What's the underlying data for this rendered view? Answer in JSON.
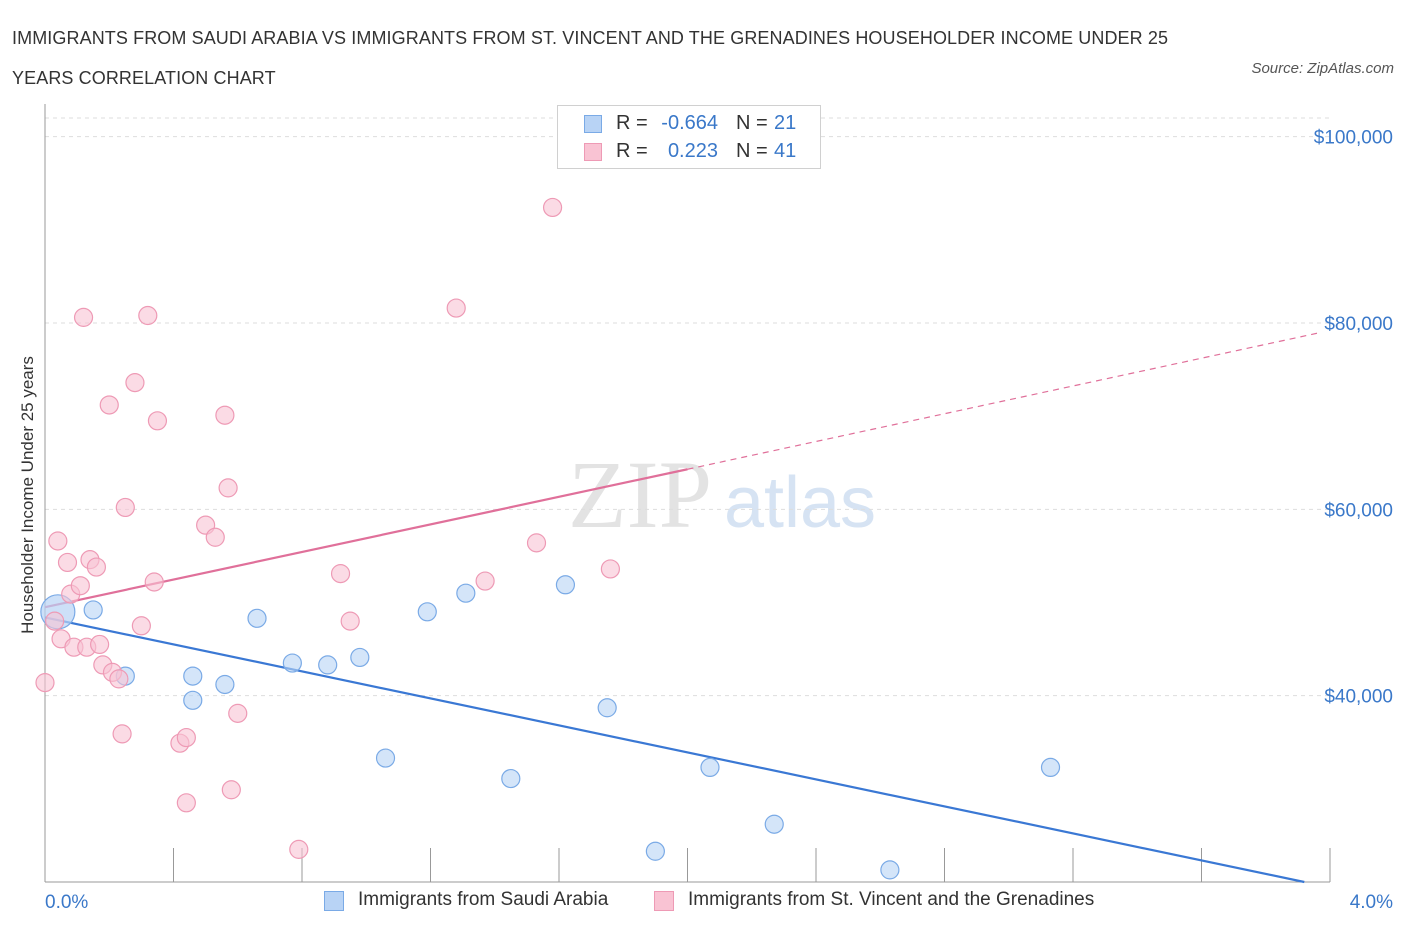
{
  "title": "IMMIGRANTS FROM SAUDI ARABIA VS IMMIGRANTS FROM ST. VINCENT AND THE GRENADINES HOUSEHOLDER INCOME UNDER 25 YEARS CORRELATION CHART",
  "source": "Source: ZipAtlas.com",
  "watermark": {
    "zip": "ZIP",
    "atlas": "atlas"
  },
  "colors": {
    "blue": "#3a78d4",
    "blue_fill": "#b8d3f5",
    "blue_stroke": "#7aaae6",
    "pink": "#e0709a",
    "pink_fill": "#f9c3d3",
    "pink_stroke": "#ee9ab5",
    "axis_label": "#3a78c9",
    "grid": "#dddddd"
  },
  "legend_top": [
    {
      "r_label": "R =",
      "r_value": "-0.664",
      "n_label": "N =",
      "n_value": "21"
    },
    {
      "r_label": "R =",
      "r_value": "0.223",
      "n_label": "N =",
      "n_value": "41"
    }
  ],
  "chart_data": {
    "type": "scatter",
    "title": "IMMIGRANTS FROM SAUDI ARABIA VS IMMIGRANTS FROM ST. VINCENT AND THE GRENADINES HOUSEHOLDER INCOME UNDER 25 YEARS CORRELATION CHART",
    "xlabel": "",
    "ylabel": "Householder Income Under 25 years",
    "xlim": [
      0,
      4
    ],
    "ylim": [
      20000,
      102000
    ],
    "x_tick_labels": [
      "0.0%",
      "4.0%"
    ],
    "y_ticks": [
      40000,
      60000,
      80000,
      100000
    ],
    "y_tick_labels": [
      "$40,000",
      "$60,000",
      "$80,000",
      "$100,000"
    ],
    "grid": true,
    "legend_position": "bottom",
    "series": [
      {
        "name": "Immigrants from Saudi Arabia",
        "color": "blue",
        "trend": {
          "x": [
            0.0,
            3.92
          ],
          "y": [
            48400,
            20000
          ],
          "dashed_to": null
        },
        "points": [
          {
            "x": 0.04,
            "y": 49000,
            "big": true
          },
          {
            "x": 0.15,
            "y": 49200
          },
          {
            "x": 0.25,
            "y": 42100
          },
          {
            "x": 0.46,
            "y": 42100
          },
          {
            "x": 0.46,
            "y": 39500
          },
          {
            "x": 0.56,
            "y": 41200
          },
          {
            "x": 0.66,
            "y": 48300
          },
          {
            "x": 0.77,
            "y": 43500
          },
          {
            "x": 0.88,
            "y": 43300
          },
          {
            "x": 0.98,
            "y": 44100
          },
          {
            "x": 1.06,
            "y": 33300
          },
          {
            "x": 1.19,
            "y": 49000
          },
          {
            "x": 1.31,
            "y": 51000
          },
          {
            "x": 1.45,
            "y": 31100
          },
          {
            "x": 1.62,
            "y": 51900
          },
          {
            "x": 1.75,
            "y": 38700
          },
          {
            "x": 1.9,
            "y": 23300
          },
          {
            "x": 2.07,
            "y": 32300
          },
          {
            "x": 2.27,
            "y": 26200
          },
          {
            "x": 2.63,
            "y": 21300
          },
          {
            "x": 3.13,
            "y": 32300
          }
        ]
      },
      {
        "name": "Immigrants from St. Vincent and the Grenadines",
        "color": "pink",
        "trend": {
          "x": [
            0.0,
            2.0
          ],
          "y": [
            49500,
            64300
          ],
          "dashed_to": {
            "x": 3.96,
            "y": 78900
          }
        },
        "points": [
          {
            "x": 0.0,
            "y": 41400
          },
          {
            "x": 0.03,
            "y": 48000
          },
          {
            "x": 0.04,
            "y": 56600
          },
          {
            "x": 0.05,
            "y": 46100
          },
          {
            "x": 0.07,
            "y": 54300
          },
          {
            "x": 0.08,
            "y": 50900
          },
          {
            "x": 0.09,
            "y": 45200
          },
          {
            "x": 0.11,
            "y": 51800
          },
          {
            "x": 0.12,
            "y": 80600
          },
          {
            "x": 0.13,
            "y": 45200
          },
          {
            "x": 0.14,
            "y": 54600
          },
          {
            "x": 0.16,
            "y": 53800
          },
          {
            "x": 0.17,
            "y": 45500
          },
          {
            "x": 0.18,
            "y": 43300
          },
          {
            "x": 0.2,
            "y": 71200
          },
          {
            "x": 0.21,
            "y": 42500
          },
          {
            "x": 0.23,
            "y": 41800
          },
          {
            "x": 0.24,
            "y": 35900
          },
          {
            "x": 0.25,
            "y": 60200
          },
          {
            "x": 0.28,
            "y": 73600
          },
          {
            "x": 0.3,
            "y": 47500
          },
          {
            "x": 0.32,
            "y": 80800
          },
          {
            "x": 0.34,
            "y": 52200
          },
          {
            "x": 0.35,
            "y": 69500
          },
          {
            "x": 0.42,
            "y": 34900
          },
          {
            "x": 0.44,
            "y": 28500
          },
          {
            "x": 0.44,
            "y": 35500
          },
          {
            "x": 0.5,
            "y": 58300
          },
          {
            "x": 0.53,
            "y": 57000
          },
          {
            "x": 0.56,
            "y": 70100
          },
          {
            "x": 0.57,
            "y": 62300
          },
          {
            "x": 0.58,
            "y": 29900
          },
          {
            "x": 0.6,
            "y": 38100
          },
          {
            "x": 0.79,
            "y": 23500
          },
          {
            "x": 0.92,
            "y": 53100
          },
          {
            "x": 0.95,
            "y": 48000
          },
          {
            "x": 1.28,
            "y": 81600
          },
          {
            "x": 1.37,
            "y": 52300
          },
          {
            "x": 1.53,
            "y": 56400
          },
          {
            "x": 1.58,
            "y": 92400
          },
          {
            "x": 1.76,
            "y": 53600
          }
        ]
      }
    ]
  }
}
